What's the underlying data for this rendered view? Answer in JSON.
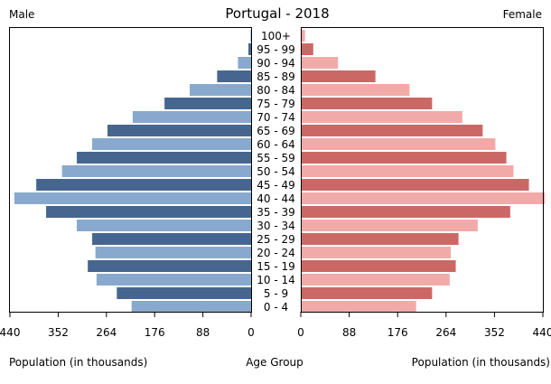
{
  "chart_data": {
    "type": "bar",
    "title": "Portugal - 2018",
    "left_label": "Male",
    "right_label": "Female",
    "xlabel_left": "Population (in thousands)",
    "xlabel_center": "Age Group",
    "xlabel_right": "Population (in thousands)",
    "xlim": [
      0,
      440
    ],
    "ticks_left": [
      "440",
      "352",
      "264",
      "176",
      "88",
      "0"
    ],
    "ticks_right": [
      "0",
      "88",
      "176",
      "264",
      "352",
      "440"
    ],
    "tick_values": [
      0,
      88,
      176,
      264,
      352,
      440
    ],
    "categories": [
      "100+",
      "95 - 99",
      "90 - 94",
      "85 - 89",
      "80 - 84",
      "75 - 79",
      "70 - 74",
      "65 - 69",
      "60 - 64",
      "55 - 59",
      "50 - 54",
      "45 - 49",
      "40 - 44",
      "35 - 39",
      "30 - 34",
      "25 - 29",
      "20 - 24",
      "15 - 19",
      "10 - 14",
      "5 - 9",
      "0 - 4"
    ],
    "series": [
      {
        "name": "Male",
        "values": [
          1,
          5,
          24,
          62,
          112,
          158,
          216,
          262,
          290,
          318,
          345,
          392,
          432,
          374,
          318,
          290,
          284,
          298,
          282,
          245,
          218
        ],
        "colors": [
          "#89a8cd",
          "#466690"
        ]
      },
      {
        "name": "Female",
        "values": [
          6,
          21,
          66,
          134,
          196,
          237,
          292,
          329,
          352,
          372,
          385,
          413,
          442,
          379,
          320,
          285,
          271,
          280,
          269,
          237,
          208
        ],
        "colors": [
          "#f2aaa8",
          "#cb6866"
        ]
      }
    ],
    "grid": false,
    "legend": "none"
  }
}
